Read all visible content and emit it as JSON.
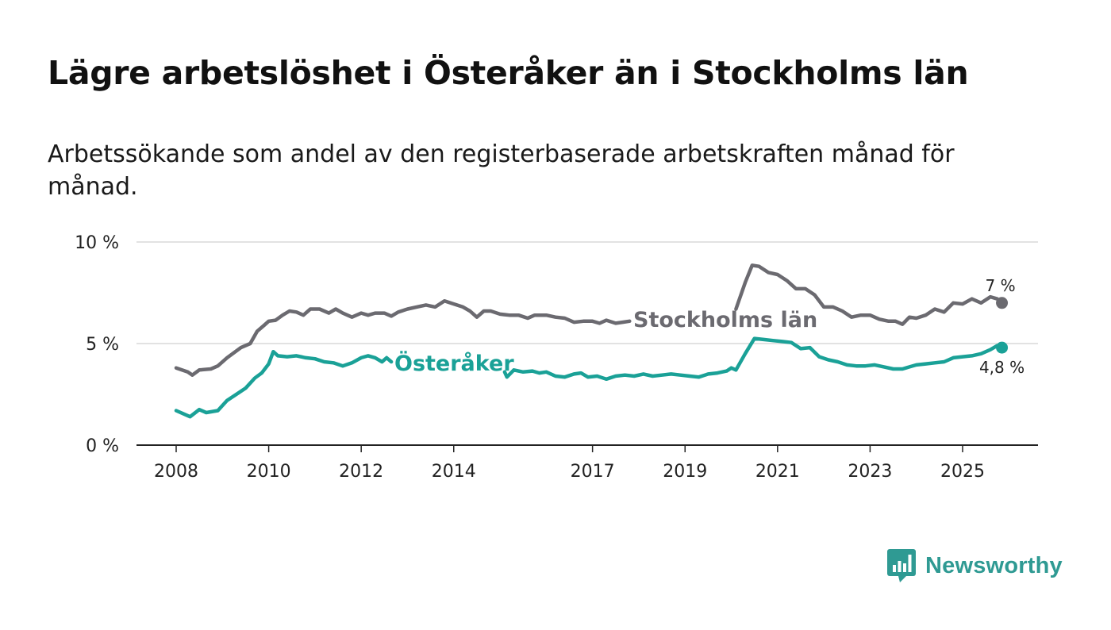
{
  "title": "Lägre arbetslöshet i Österåker än i Stockholms län",
  "subtitle": "Arbetssökande som andel av den registerbaserade arbetskraften månad för månad.",
  "brand": {
    "name": "Newsworthy",
    "icon": "newsworthy-logo-icon",
    "color": "#2f9a93"
  },
  "chart_data": {
    "type": "line",
    "title": "Lägre arbetslöshet i Österåker än i Stockholms län",
    "xlabel": "",
    "ylabel": "",
    "xlim": [
      2008,
      2026.5
    ],
    "ylim": [
      0,
      10
    ],
    "xticks": [
      {
        "value": 2008,
        "label": "2008"
      },
      {
        "value": 2010,
        "label": "2010"
      },
      {
        "value": 2012,
        "label": "2012"
      },
      {
        "value": 2014,
        "label": "2014"
      },
      {
        "value": 2017,
        "label": "2017"
      },
      {
        "value": 2019,
        "label": "2019"
      },
      {
        "value": 2021,
        "label": "2021"
      },
      {
        "value": 2023,
        "label": "2023"
      },
      {
        "value": 2025,
        "label": "2025"
      }
    ],
    "yticks": [
      {
        "value": 0,
        "label": "0 %"
      },
      {
        "value": 5,
        "label": "5 %"
      },
      {
        "value": 10,
        "label": "10 %"
      }
    ],
    "grid": true,
    "series": [
      {
        "name": "Stockholms län",
        "color": "#6b6a70",
        "end_label": "7 %",
        "points": [
          [
            2008.0,
            3.8
          ],
          [
            2008.25,
            3.6
          ],
          [
            2008.35,
            3.45
          ],
          [
            2008.5,
            3.7
          ],
          [
            2008.75,
            3.75
          ],
          [
            2008.9,
            3.9
          ],
          [
            2009.1,
            4.3
          ],
          [
            2009.4,
            4.8
          ],
          [
            2009.6,
            5.0
          ],
          [
            2009.75,
            5.6
          ],
          [
            2009.9,
            5.9
          ],
          [
            2010.0,
            6.1
          ],
          [
            2010.15,
            6.15
          ],
          [
            2010.3,
            6.4
          ],
          [
            2010.45,
            6.6
          ],
          [
            2010.6,
            6.55
          ],
          [
            2010.75,
            6.4
          ],
          [
            2010.9,
            6.7
          ],
          [
            2011.1,
            6.7
          ],
          [
            2011.3,
            6.5
          ],
          [
            2011.45,
            6.7
          ],
          [
            2011.6,
            6.5
          ],
          [
            2011.8,
            6.3
          ],
          [
            2012.0,
            6.5
          ],
          [
            2012.15,
            6.4
          ],
          [
            2012.3,
            6.5
          ],
          [
            2012.5,
            6.5
          ],
          [
            2012.65,
            6.35
          ],
          [
            2012.8,
            6.55
          ],
          [
            2013.0,
            6.7
          ],
          [
            2013.2,
            6.8
          ],
          [
            2013.4,
            6.9
          ],
          [
            2013.6,
            6.8
          ],
          [
            2013.8,
            7.1
          ],
          [
            2014.0,
            6.95
          ],
          [
            2014.2,
            6.8
          ],
          [
            2014.35,
            6.6
          ],
          [
            2014.5,
            6.3
          ],
          [
            2014.65,
            6.6
          ],
          [
            2014.8,
            6.6
          ],
          [
            2015.0,
            6.45
          ],
          [
            2015.2,
            6.4
          ],
          [
            2015.4,
            6.4
          ],
          [
            2015.6,
            6.25
          ],
          [
            2015.75,
            6.4
          ],
          [
            2016.0,
            6.4
          ],
          [
            2016.2,
            6.3
          ],
          [
            2016.4,
            6.25
          ],
          [
            2016.6,
            6.05
          ],
          [
            2016.8,
            6.1
          ],
          [
            2017.0,
            6.1
          ],
          [
            2017.15,
            6.0
          ],
          [
            2017.3,
            6.15
          ],
          [
            2017.5,
            6.0
          ],
          [
            2017.65,
            6.05
          ],
          [
            2017.8,
            6.1
          ]
        ],
        "points_b": [
          [
            2020.1,
            6.7
          ],
          [
            2020.3,
            8.0
          ],
          [
            2020.45,
            8.85
          ],
          [
            2020.6,
            8.8
          ],
          [
            2020.8,
            8.5
          ],
          [
            2021.0,
            8.4
          ],
          [
            2021.2,
            8.1
          ],
          [
            2021.4,
            7.7
          ],
          [
            2021.6,
            7.7
          ],
          [
            2021.8,
            7.4
          ],
          [
            2022.0,
            6.8
          ],
          [
            2022.2,
            6.8
          ],
          [
            2022.4,
            6.6
          ],
          [
            2022.6,
            6.3
          ],
          [
            2022.8,
            6.4
          ],
          [
            2023.0,
            6.4
          ],
          [
            2023.2,
            6.2
          ],
          [
            2023.4,
            6.1
          ],
          [
            2023.55,
            6.1
          ],
          [
            2023.7,
            5.95
          ],
          [
            2023.85,
            6.3
          ],
          [
            2024.0,
            6.25
          ],
          [
            2024.2,
            6.4
          ],
          [
            2024.4,
            6.7
          ],
          [
            2024.6,
            6.55
          ],
          [
            2024.8,
            7.0
          ],
          [
            2025.0,
            6.95
          ],
          [
            2025.2,
            7.2
          ],
          [
            2025.4,
            7.0
          ],
          [
            2025.6,
            7.3
          ],
          [
            2025.75,
            7.2
          ],
          [
            2025.85,
            7.0
          ]
        ]
      },
      {
        "name": "Österåker",
        "color": "#1aa197",
        "end_label": "4,8 %",
        "points": [
          [
            2008.0,
            1.7
          ],
          [
            2008.15,
            1.55
          ],
          [
            2008.3,
            1.4
          ],
          [
            2008.5,
            1.75
          ],
          [
            2008.65,
            1.6
          ],
          [
            2008.9,
            1.7
          ],
          [
            2009.1,
            2.2
          ],
          [
            2009.3,
            2.5
          ],
          [
            2009.5,
            2.8
          ],
          [
            2009.7,
            3.3
          ],
          [
            2009.85,
            3.55
          ],
          [
            2010.0,
            4.0
          ],
          [
            2010.1,
            4.6
          ],
          [
            2010.2,
            4.4
          ],
          [
            2010.4,
            4.35
          ],
          [
            2010.6,
            4.4
          ],
          [
            2010.8,
            4.3
          ],
          [
            2011.0,
            4.25
          ],
          [
            2011.2,
            4.1
          ],
          [
            2011.4,
            4.05
          ],
          [
            2011.6,
            3.9
          ],
          [
            2011.8,
            4.05
          ],
          [
            2012.0,
            4.3
          ],
          [
            2012.15,
            4.4
          ],
          [
            2012.3,
            4.3
          ],
          [
            2012.45,
            4.1
          ],
          [
            2012.55,
            4.3
          ],
          [
            2012.65,
            4.1
          ]
        ],
        "points_b": [
          [
            2015.1,
            3.6
          ],
          [
            2015.15,
            3.35
          ],
          [
            2015.3,
            3.7
          ],
          [
            2015.5,
            3.6
          ],
          [
            2015.7,
            3.65
          ],
          [
            2015.85,
            3.55
          ],
          [
            2016.0,
            3.6
          ],
          [
            2016.2,
            3.4
          ],
          [
            2016.4,
            3.35
          ],
          [
            2016.6,
            3.5
          ],
          [
            2016.75,
            3.55
          ],
          [
            2016.9,
            3.35
          ],
          [
            2017.1,
            3.4
          ],
          [
            2017.3,
            3.25
          ],
          [
            2017.5,
            3.4
          ],
          [
            2017.7,
            3.45
          ],
          [
            2017.9,
            3.4
          ],
          [
            2018.1,
            3.5
          ],
          [
            2018.3,
            3.4
          ],
          [
            2018.5,
            3.45
          ],
          [
            2018.7,
            3.5
          ],
          [
            2018.9,
            3.45
          ],
          [
            2019.1,
            3.4
          ],
          [
            2019.3,
            3.35
          ],
          [
            2019.5,
            3.5
          ],
          [
            2019.7,
            3.55
          ],
          [
            2019.9,
            3.65
          ],
          [
            2020.0,
            3.8
          ],
          [
            2020.1,
            3.7
          ],
          [
            2020.3,
            4.5
          ],
          [
            2020.5,
            5.25
          ],
          [
            2020.7,
            5.2
          ],
          [
            2020.9,
            5.15
          ],
          [
            2021.1,
            5.1
          ],
          [
            2021.3,
            5.05
          ],
          [
            2021.5,
            4.75
          ],
          [
            2021.7,
            4.8
          ],
          [
            2021.9,
            4.35
          ],
          [
            2022.1,
            4.2
          ],
          [
            2022.3,
            4.1
          ],
          [
            2022.5,
            3.95
          ],
          [
            2022.7,
            3.9
          ],
          [
            2022.9,
            3.9
          ],
          [
            2023.1,
            3.95
          ],
          [
            2023.3,
            3.85
          ],
          [
            2023.5,
            3.75
          ],
          [
            2023.7,
            3.75
          ],
          [
            2023.85,
            3.85
          ],
          [
            2024.0,
            3.95
          ],
          [
            2024.2,
            4.0
          ],
          [
            2024.4,
            4.05
          ],
          [
            2024.6,
            4.1
          ],
          [
            2024.8,
            4.3
          ],
          [
            2025.0,
            4.35
          ],
          [
            2025.2,
            4.4
          ],
          [
            2025.4,
            4.5
          ],
          [
            2025.6,
            4.7
          ],
          [
            2025.75,
            4.9
          ],
          [
            2025.85,
            4.8
          ]
        ]
      }
    ]
  }
}
